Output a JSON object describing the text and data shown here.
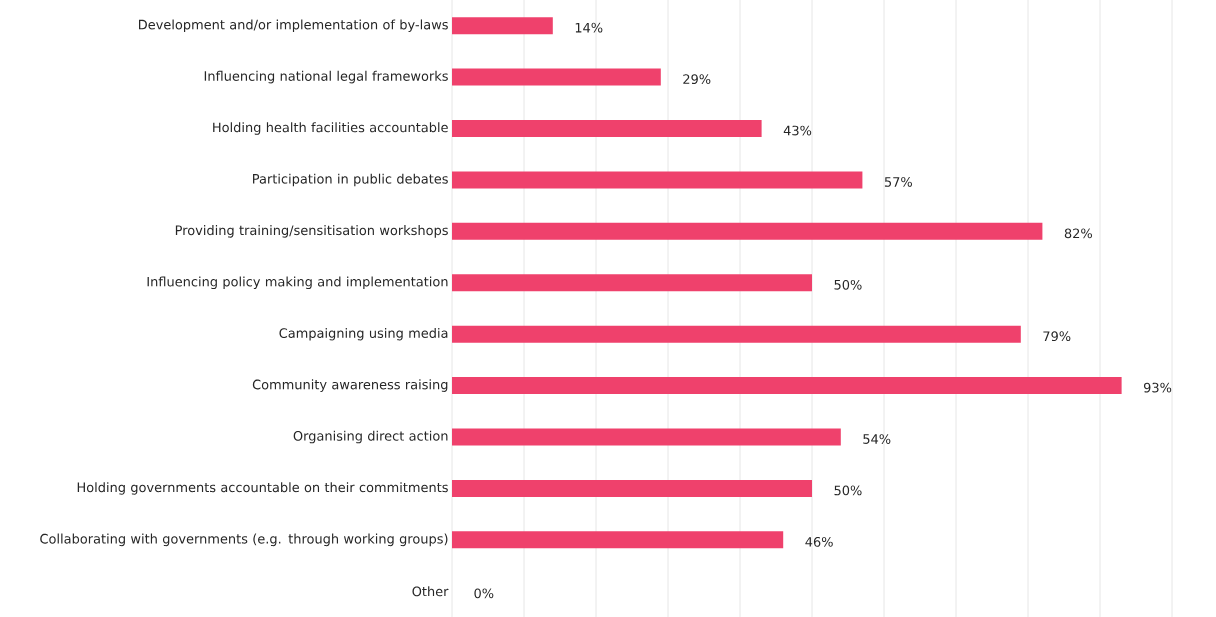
{
  "chart_data": {
    "type": "bar",
    "orientation": "horizontal",
    "categories": [
      "Development and/or implementation of by-laws",
      "Influencing national legal frameworks",
      "Holding health facilities accountable",
      "Participation in public debates",
      "Providing training/sensitisation workshops",
      "Influencing policy making and implementation",
      "Campaigning using media",
      "Community awareness raising",
      "Organising direct action",
      "Holding governments accountable on their commitments",
      "Collaborating with governments (e.g. through working groups)",
      "Other"
    ],
    "values": [
      14,
      29,
      43,
      57,
      82,
      50,
      79,
      93,
      54,
      50,
      46,
      0
    ],
    "value_labels": [
      "14%",
      "29%",
      "43%",
      "57%",
      "82%",
      "50%",
      "79%",
      "93%",
      "54%",
      "50%",
      "46%",
      "0%"
    ],
    "color": "#ef416c",
    "xlim": [
      0,
      100
    ],
    "xticks": [
      {
        "value": 0,
        "label": null
      },
      {
        "value": 10,
        "label": null
      },
      {
        "value": 20,
        "label": null
      },
      {
        "value": 30,
        "label": null
      },
      {
        "value": 40,
        "label": null
      },
      {
        "value": 50,
        "label": null
      },
      {
        "value": 60,
        "label": null
      },
      {
        "value": 70,
        "label": null
      },
      {
        "value": 80,
        "label": null
      },
      {
        "value": 90,
        "label": null
      },
      {
        "value": 100,
        "label": null
      }
    ],
    "grid": "x",
    "tick_labels": "y"
  }
}
